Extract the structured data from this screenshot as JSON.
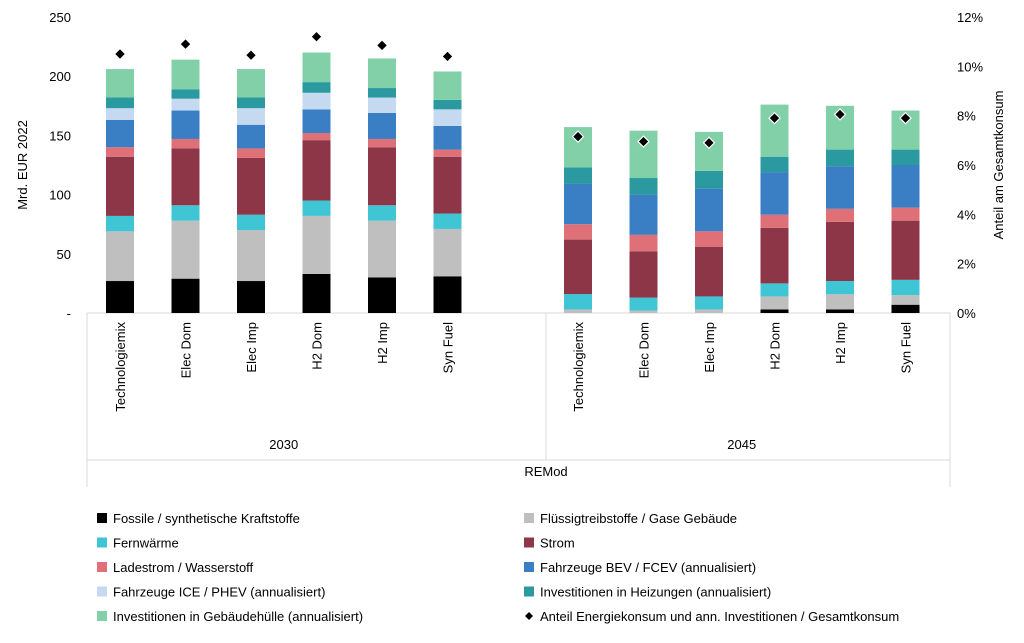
{
  "chart_data": {
    "type": "bar",
    "stacked": true,
    "x_title": "REMod",
    "ylabel": "Mrd. EUR 2022",
    "y2label": "Anteil am Gesamtkonsum",
    "ylim": [
      0,
      250
    ],
    "y2lim": [
      0,
      0.12
    ],
    "y_ticks": [
      "-",
      "50",
      "100",
      "150",
      "200",
      "250"
    ],
    "y2_ticks": [
      "0%",
      "2%",
      "4%",
      "6%",
      "8%",
      "10%",
      "12%"
    ],
    "groups": [
      {
        "label": "2030",
        "categories": [
          "Technologiemix",
          "Elec Dom",
          "Elec Imp",
          "H2 Dom",
          "H2 Imp",
          "Syn Fuel"
        ]
      },
      {
        "label": "2045",
        "categories": [
          "Technologiemix",
          "Elec Dom",
          "Elec Imp",
          "H2 Dom",
          "H2 Imp",
          "Syn Fuel"
        ]
      }
    ],
    "series": [
      {
        "name": "Fossile / synthetische Kraftstoffe",
        "color": "#000000",
        "values": [
          27,
          29,
          27,
          33,
          30,
          31,
          0,
          0,
          0,
          3,
          3,
          7
        ]
      },
      {
        "name": "Flüssigtreibstoffe / Gase Gebäude",
        "color": "#bfbfbf",
        "values": [
          42,
          49,
          43,
          49,
          48,
          40,
          3,
          2,
          3,
          11,
          13,
          8
        ]
      },
      {
        "name": "Fernwärme",
        "color": "#3fc5d4",
        "values": [
          13,
          13,
          13,
          13,
          13,
          13,
          13,
          11,
          11,
          11,
          11,
          13
        ]
      },
      {
        "name": "Strom",
        "color": "#8c3648",
        "values": [
          50,
          48,
          48,
          51,
          49,
          48,
          46,
          39,
          42,
          47,
          50,
          50
        ]
      },
      {
        "name": "Ladestrom / Wasserstoff",
        "color": "#e07078",
        "values": [
          8,
          8,
          8,
          6,
          7,
          6,
          13,
          14,
          13,
          11,
          11,
          11
        ]
      },
      {
        "name": "Fahrzeuge BEV / FCEV (annualisiert)",
        "color": "#3a7ec4",
        "values": [
          23,
          24,
          20,
          20,
          22,
          20,
          34,
          34,
          36,
          36,
          36,
          36
        ]
      },
      {
        "name": "Fahrzeuge ICE / PHEV (annualisiert)",
        "color": "#c5d9f1",
        "values": [
          10,
          10,
          14,
          14,
          13,
          14,
          0,
          0,
          0,
          0,
          0,
          0
        ]
      },
      {
        "name": "Investitionen in Heizungen (annualisiert)",
        "color": "#2a9aa0",
        "values": [
          9,
          8,
          9,
          9,
          8,
          8,
          14,
          14,
          15,
          13,
          14,
          13
        ]
      },
      {
        "name": "Investitionen in Gebäudehülle (annualisiert)",
        "color": "#82d0a8",
        "values": [
          24,
          25,
          24,
          25,
          25,
          24,
          34,
          40,
          33,
          44,
          37,
          33
        ]
      }
    ],
    "marker_series": {
      "name": "Anteil Energiekonsum und ann. Investitionen / Gesamtkonsum",
      "color": "#000000",
      "values": [
        0.105,
        0.109,
        0.1045,
        0.112,
        0.1085,
        0.104,
        0.0715,
        0.0695,
        0.069,
        0.079,
        0.0805,
        0.079
      ]
    }
  }
}
